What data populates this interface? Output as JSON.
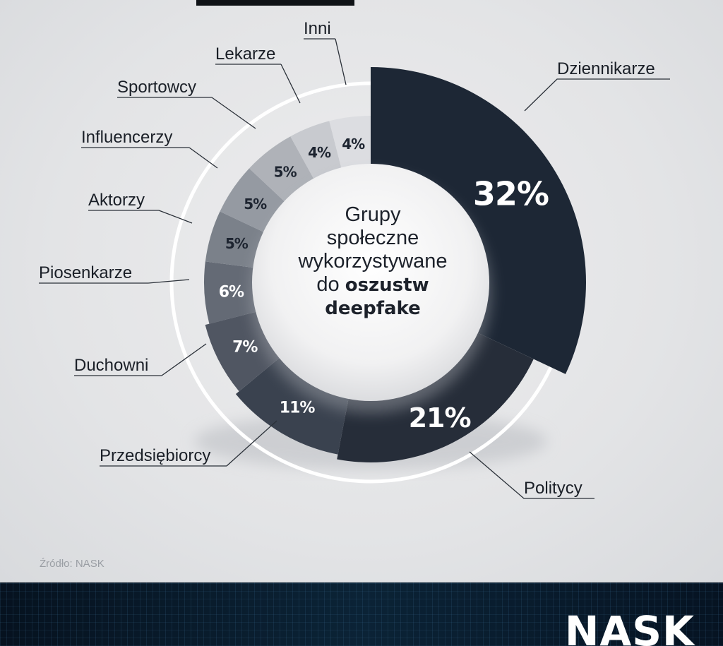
{
  "chart_data": {
    "type": "pie",
    "title": "Grupy społeczne wykorzystywane do oszustw deepfake",
    "title_lines": [
      "Grupy",
      "społeczne",
      "wykorzystywane"
    ],
    "title_line4_normal": "do",
    "title_line4_bold": "oszustw",
    "title_line5_bold": "deepfake",
    "categories": [
      "Dziennikarze",
      "Politycy",
      "Przedsiębiorcy",
      "Duchowni",
      "Piosenkarze",
      "Aktorzy",
      "Influencerzy",
      "Sportowcy",
      "Lekarze",
      "Inni"
    ],
    "values": [
      32,
      21,
      11,
      7,
      6,
      5,
      5,
      5,
      4,
      4
    ],
    "value_labels": [
      "32%",
      "21%",
      "11%",
      "7%",
      "6%",
      "5%",
      "5%",
      "5%",
      "4%",
      "4%"
    ],
    "colors": [
      "#1d2735",
      "#262d39",
      "#3a424f",
      "#505662",
      "#646a75",
      "#7b818a",
      "#959aa2",
      "#afb2b8",
      "#c8cacf",
      "#dcdde1"
    ],
    "label_colors": [
      "#ffffff",
      "#ffffff",
      "#ffffff",
      "#ffffff",
      "#ffffff",
      "#1d2430",
      "#1d2430",
      "#1d2430",
      "#1d2430",
      "#1d2430"
    ],
    "legend": "none"
  },
  "source": "Źródło: NASK",
  "logo": "NASK"
}
